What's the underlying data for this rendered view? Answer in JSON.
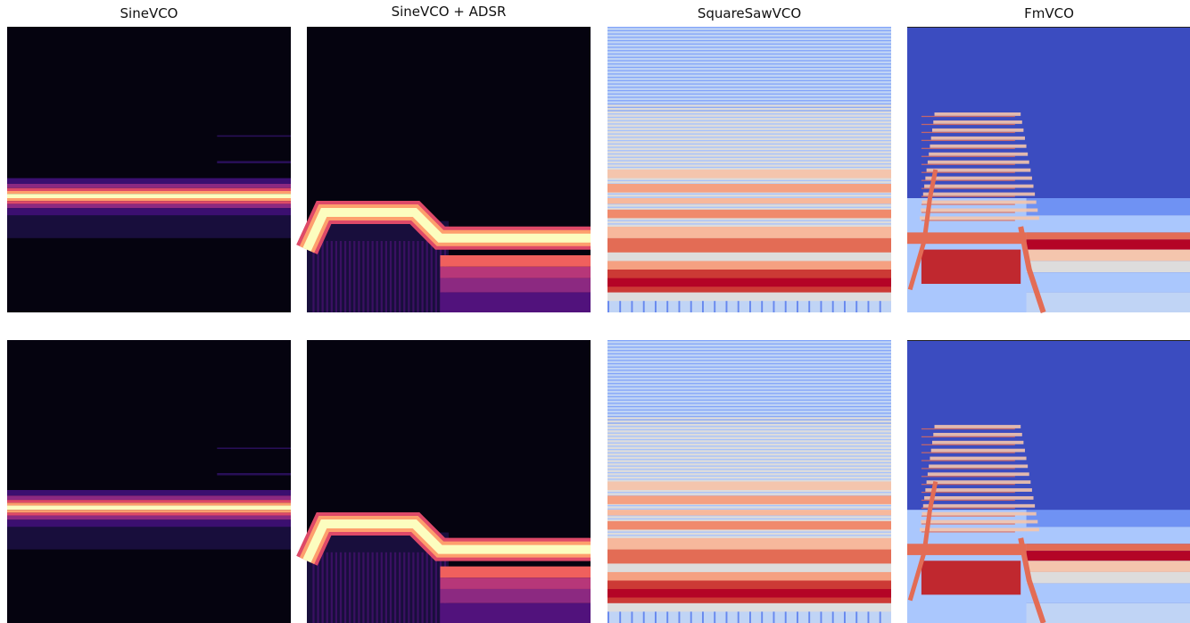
{
  "titles": [
    "SineVCO",
    "SineVCO + ADSR",
    "SquareSawVCO",
    "FmVCO"
  ]
}
